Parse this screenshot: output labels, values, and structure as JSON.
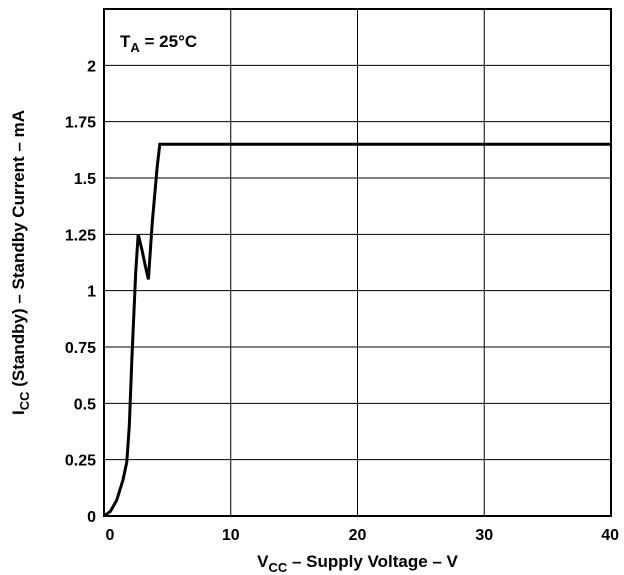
{
  "chart_data": {
    "type": "line",
    "xlabel": {
      "base": "V",
      "sub": "CC",
      "rest": " – Supply Voltage – V"
    },
    "ylabel": {
      "base": "I",
      "sub": "CC",
      "rest": " (Standby) – Standby Current – mA"
    },
    "annotation": {
      "base": "T",
      "sub": "A",
      "rest": " = 25°C"
    },
    "xlim": [
      0,
      40
    ],
    "ylim": [
      0,
      2.25
    ],
    "xticks": [
      0,
      10,
      20,
      30,
      40
    ],
    "xtick_labels": [
      "0",
      "10",
      "20",
      "30",
      "40"
    ],
    "yticks": [
      0,
      0.25,
      0.5,
      0.75,
      1,
      1.25,
      1.5,
      1.75,
      2
    ],
    "ytick_labels": [
      "0",
      "0.25",
      "0.5",
      "0.75",
      "1",
      "1.25",
      "1.5",
      "1.75",
      "2"
    ],
    "grid": true,
    "series": [
      {
        "color": "#000000",
        "x": [
          0,
          0.5,
          1,
          1.5,
          1.8,
          2,
          2.2,
          2.5,
          2.7,
          3,
          3.3,
          3.5,
          3.8,
          4.2,
          4.4,
          40
        ],
        "y": [
          0,
          0.02,
          0.07,
          0.16,
          0.24,
          0.4,
          0.7,
          1.08,
          1.25,
          1.18,
          1.1,
          1.05,
          1.3,
          1.55,
          1.65,
          1.65
        ]
      }
    ]
  }
}
